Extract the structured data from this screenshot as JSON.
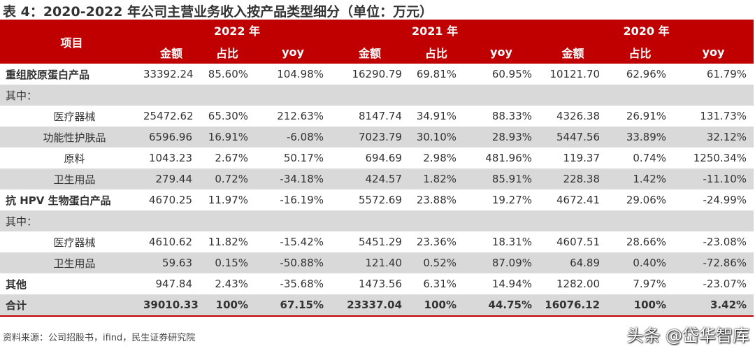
{
  "title": "表 4：2020-2022 年公司主营业务收入按产品类型细分（单位：万元）",
  "header": {
    "item": "项目",
    "years": [
      "2022 年",
      "2021 年",
      "2020 年"
    ],
    "cols": [
      "金额",
      "占比",
      "yoy"
    ]
  },
  "rows": [
    {
      "label": "重组胶原蛋白产品",
      "type": "bold",
      "values": [
        "33392.24",
        "85.60%",
        "104.98%",
        "16290.79",
        "69.81%",
        "60.95%",
        "10121.70",
        "62.96%",
        "61.79%"
      ]
    },
    {
      "label": "其中：",
      "type": "note",
      "values": [
        "",
        "",
        "",
        "",
        "",
        "",
        "",
        "",
        ""
      ]
    },
    {
      "label": "医疗器械",
      "type": "sub",
      "values": [
        "25472.62",
        "65.30%",
        "212.63%",
        "8147.74",
        "34.91%",
        "88.33%",
        "4326.38",
        "26.91%",
        "131.73%"
      ]
    },
    {
      "label": "功能性护肤品",
      "type": "sub",
      "values": [
        "6596.96",
        "16.91%",
        "-6.08%",
        "7023.79",
        "30.10%",
        "28.93%",
        "5447.56",
        "33.89%",
        "32.12%"
      ]
    },
    {
      "label": "原料",
      "type": "sub",
      "values": [
        "1043.23",
        "2.67%",
        "50.17%",
        "694.69",
        "2.98%",
        "481.96%",
        "119.37",
        "0.74%",
        "1250.34%"
      ]
    },
    {
      "label": "卫生用品",
      "type": "sub",
      "values": [
        "279.44",
        "0.72%",
        "-34.18%",
        "424.57",
        "1.82%",
        "85.91%",
        "228.38",
        "1.42%",
        "-11.10%"
      ]
    },
    {
      "label": "抗 HPV 生物蛋白产品",
      "type": "bold",
      "values": [
        "4670.25",
        "11.97%",
        "-16.19%",
        "5572.69",
        "23.88%",
        "19.27%",
        "4672.41",
        "29.06%",
        "-24.99%"
      ]
    },
    {
      "label": "其中：",
      "type": "note",
      "values": [
        "",
        "",
        "",
        "",
        "",
        "",
        "",
        "",
        ""
      ]
    },
    {
      "label": "医疗器械",
      "type": "sub",
      "values": [
        "4610.62",
        "11.82%",
        "-15.42%",
        "5451.29",
        "23.36%",
        "18.31%",
        "4607.51",
        "28.66%",
        "-23.08%"
      ]
    },
    {
      "label": "卫生用品",
      "type": "sub",
      "values": [
        "59.63",
        "0.15%",
        "-50.88%",
        "121.40",
        "0.52%",
        "87.09%",
        "64.89",
        "0.40%",
        "-72.86%"
      ]
    },
    {
      "label": "其他",
      "type": "bold",
      "values": [
        "947.84",
        "2.43%",
        "-35.68%",
        "1473.56",
        "6.31%",
        "14.94%",
        "1282.00",
        "7.97%",
        "-23.07%"
      ]
    },
    {
      "label": "合计",
      "type": "total",
      "values": [
        "39010.33",
        "100%",
        "67.15%",
        "23337.04",
        "100%",
        "44.75%",
        "16076.12",
        "100%",
        "3.42%"
      ]
    }
  ],
  "source": "资料来源：公司招股书，ifind，民生证券研究院",
  "watermark": "头条 @岱华智库",
  "colors": {
    "header": "#c00000",
    "stripe": "#d9d9d9"
  }
}
